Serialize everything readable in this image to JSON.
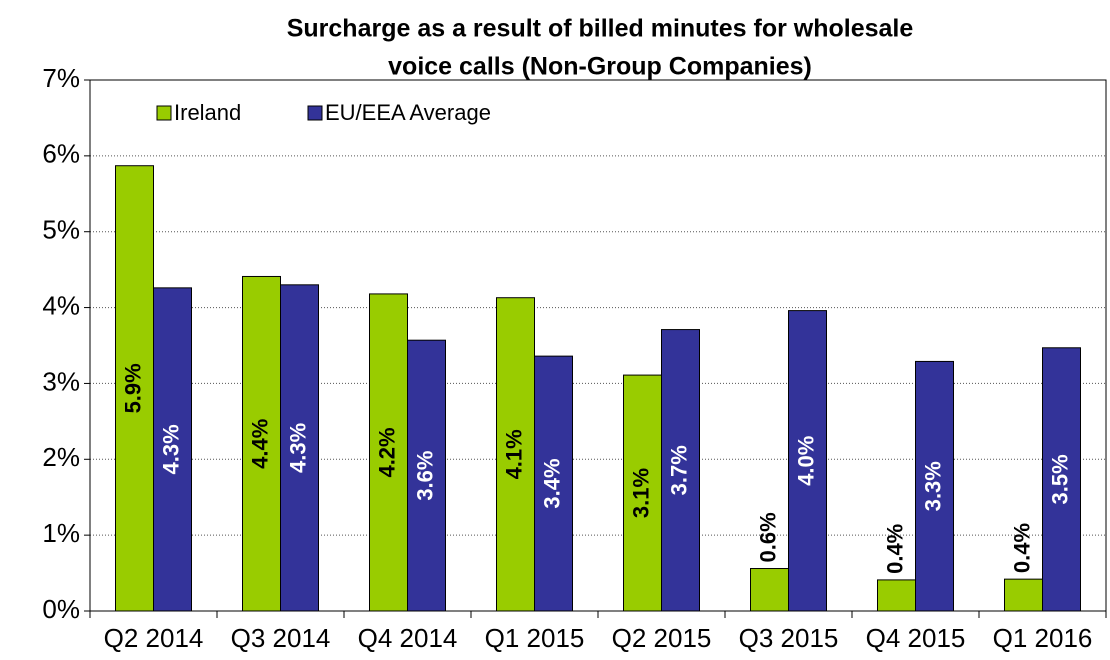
{
  "chart_data": {
    "type": "bar",
    "title": [
      "Surcharge as a result of billed minutes for wholesale",
      "voice calls (Non-Group Companies)"
    ],
    "categories": [
      "Q2 2014",
      "Q3 2014",
      "Q4 2014",
      "Q1 2015",
      "Q2 2015",
      "Q3 2015",
      "Q4 2015",
      "Q1 2016"
    ],
    "series": [
      {
        "name": "Ireland",
        "color": "#99cc00",
        "values": [
          5.87,
          4.41,
          4.18,
          4.13,
          3.11,
          0.56,
          0.41,
          0.42
        ],
        "value_labels": [
          "5.9%",
          "4.4%",
          "4.2%",
          "4.1%",
          "3.1%",
          "0.6%",
          "0.4%",
          "0.4%"
        ]
      },
      {
        "name": "EU/EEA Average",
        "color": "#333399",
        "values": [
          4.26,
          4.3,
          3.57,
          3.36,
          3.71,
          3.96,
          3.29,
          3.47
        ],
        "value_labels": [
          "4.3%",
          "4.3%",
          "3.6%",
          "3.4%",
          "3.7%",
          "4.0%",
          "3.3%",
          "3.5%"
        ]
      }
    ],
    "ylim": [
      0,
      7
    ],
    "yticks": [
      {
        "value": 0,
        "label": "0%"
      },
      {
        "value": 1,
        "label": "1%"
      },
      {
        "value": 2,
        "label": "2%"
      },
      {
        "value": 3,
        "label": "3%"
      },
      {
        "value": 4,
        "label": "4%"
      },
      {
        "value": 5,
        "label": "5%"
      },
      {
        "value": 6,
        "label": "6%"
      },
      {
        "value": 7,
        "label": "7%"
      }
    ],
    "grid": true,
    "legend": "top-left"
  }
}
